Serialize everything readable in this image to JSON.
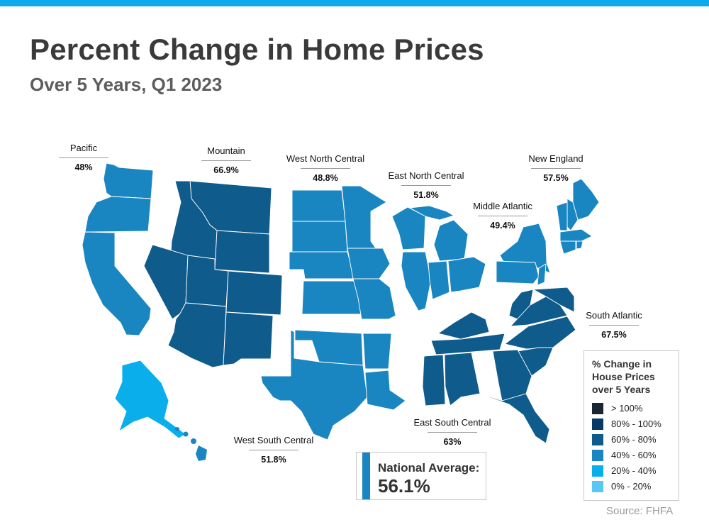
{
  "header": {
    "title": "Percent Change in Home Prices",
    "subtitle": "Over 5 Years, Q1 2023"
  },
  "colors": {
    "top_bar": "#0eaaea",
    "gt100": "#1a2730",
    "c80_100": "#083a66",
    "c60_80": "#0f5b8c",
    "c40_60": "#1a86c1",
    "c20_40": "#0aaeea",
    "c0_20": "#58c7f3",
    "state_border": "#ffffff"
  },
  "regions": [
    {
      "id": "pacific",
      "name": "Pacific",
      "value": "48%",
      "color": "#1a86c1",
      "category": "40% - 60%"
    },
    {
      "id": "mountain",
      "name": "Mountain",
      "value": "66.9%",
      "color": "#0f5b8c",
      "category": "60% - 80%"
    },
    {
      "id": "west-north-central",
      "name": "West North Central",
      "value": "48.8%",
      "color": "#1a86c1",
      "category": "40% - 60%"
    },
    {
      "id": "east-north-central",
      "name": "East North Central",
      "value": "51.8%",
      "color": "#1a86c1",
      "category": "40% - 60%"
    },
    {
      "id": "middle-atlantic",
      "name": "Middle Atlantic",
      "value": "49.4%",
      "color": "#1a86c1",
      "category": "40% - 60%"
    },
    {
      "id": "new-england",
      "name": "New England",
      "value": "57.5%",
      "color": "#1a86c1",
      "category": "40% - 60%"
    },
    {
      "id": "south-atlantic",
      "name": "South Atlantic",
      "value": "67.5%",
      "color": "#0f5b8c",
      "category": "60% - 80%"
    },
    {
      "id": "east-south-central",
      "name": "East South Central",
      "value": "63%",
      "color": "#0f5b8c",
      "category": "60% - 80%"
    },
    {
      "id": "west-south-central",
      "name": "West South Central",
      "value": "51.8%",
      "color": "#1a86c1",
      "category": "40% - 60%"
    }
  ],
  "alaska": {
    "color": "#0aaeea"
  },
  "hawaii": {
    "color": "#1a86c1"
  },
  "national": {
    "label": "National Average:",
    "value": "56.1%",
    "color": "#1a86c1"
  },
  "legend": {
    "title": "% Change in House Prices over 5 Years",
    "items": [
      {
        "label": "> 100%",
        "color": "#1a2730"
      },
      {
        "label": "80% - 100%",
        "color": "#083a66"
      },
      {
        "label": "60% - 80%",
        "color": "#0f5b8c"
      },
      {
        "label": "40% - 60%",
        "color": "#1a86c1"
      },
      {
        "label": "20% - 40%",
        "color": "#0aaeea"
      },
      {
        "label": "0% - 20%",
        "color": "#58c7f3"
      }
    ]
  },
  "source": "Source: FHFA"
}
